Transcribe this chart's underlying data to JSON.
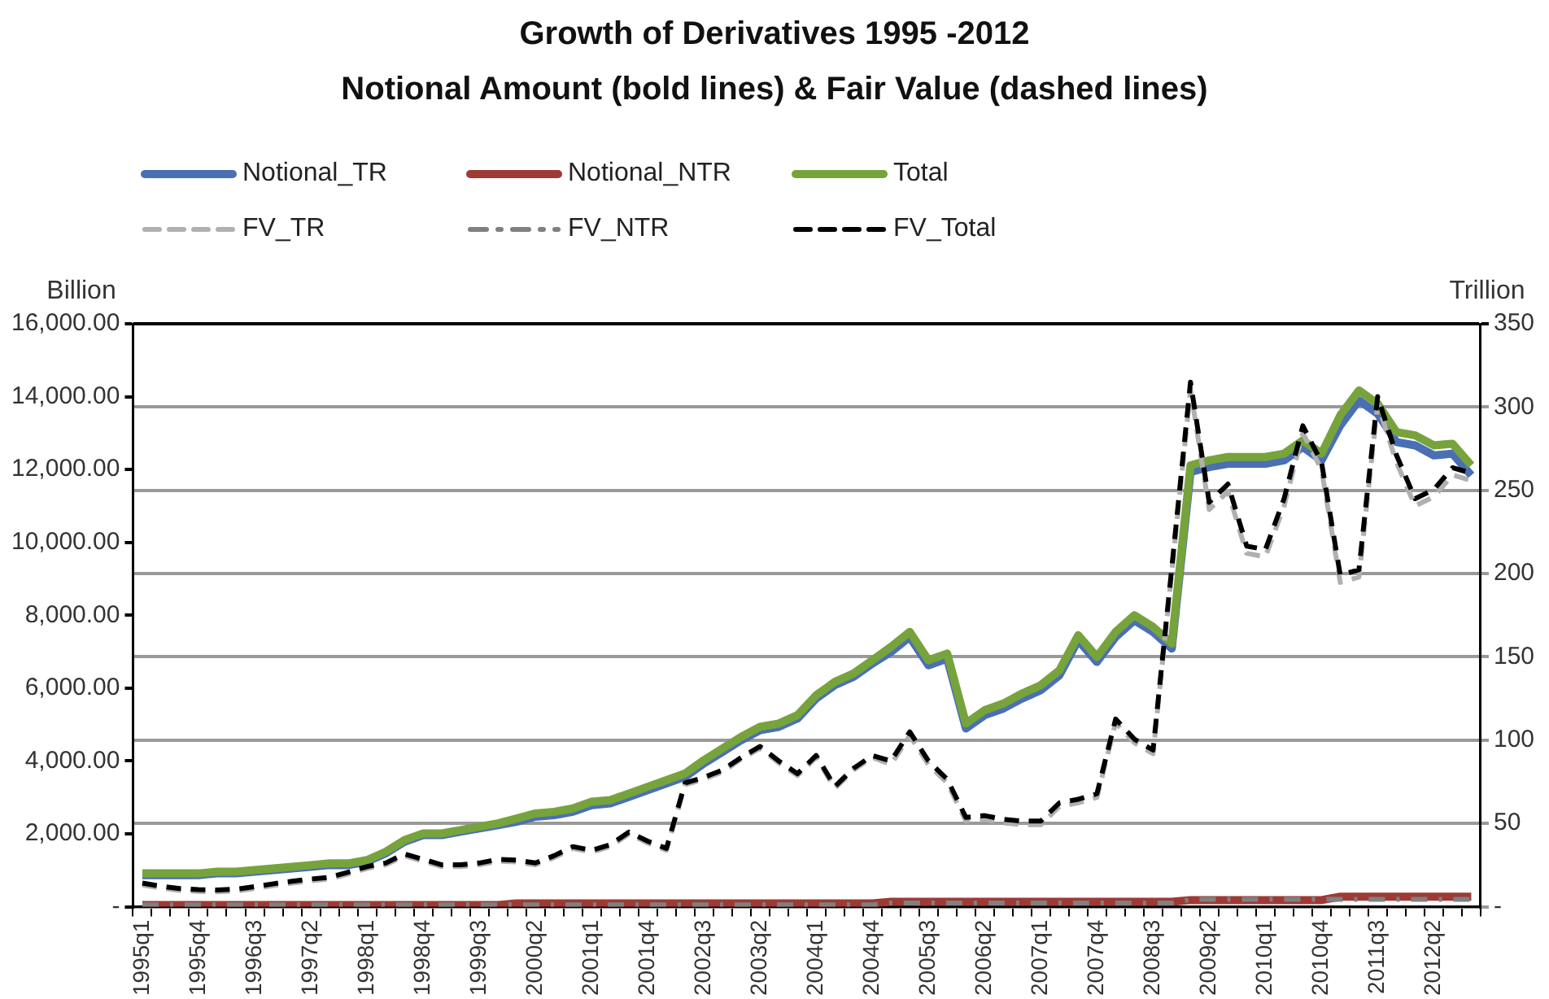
{
  "chart_data": {
    "type": "line",
    "title": "Growth of Derivatives 1995 -2012",
    "subtitle": "Notional Amount (bold lines) & Fair Value (dashed lines)",
    "ylabel": "Billion",
    "y2label": "Trillion",
    "categories": [
      "1995q1",
      null,
      null,
      "1995q4",
      null,
      null,
      "1996q3",
      null,
      null,
      "1997q2",
      null,
      null,
      "1998q1",
      null,
      null,
      "1998q4",
      null,
      null,
      "1999q3",
      null,
      null,
      "2000q2",
      null,
      null,
      "2001q1",
      null,
      null,
      "2001q4",
      null,
      null,
      "2002q3",
      null,
      null,
      "2003q2",
      null,
      null,
      "2004q1",
      null,
      null,
      "2004q4",
      null,
      null,
      "2005q3",
      null,
      null,
      "2006q2",
      null,
      null,
      "2007q1",
      null,
      null,
      "2007q4",
      null,
      null,
      "2008q3",
      null,
      null,
      "2009q2",
      null,
      null,
      "2010q1",
      null,
      null,
      "2010q4",
      null,
      null,
      "2011q3",
      null,
      null,
      "2012q2",
      null,
      null
    ],
    "series": [
      {
        "name": "Notional_TR",
        "color": "#4a6fb5",
        "axis": "y2",
        "line_style": "solid",
        "values": [
          19,
          19,
          19,
          19,
          20,
          20,
          21,
          22,
          23,
          24,
          25,
          25,
          27,
          32,
          39,
          43,
          43,
          45,
          47,
          49,
          51,
          54,
          55,
          57,
          61,
          62,
          66,
          70,
          74,
          78,
          86,
          93,
          100,
          106,
          108,
          113,
          125,
          133,
          138,
          146,
          153,
          162,
          145,
          149,
          107,
          115,
          119,
          125,
          130,
          139,
          160,
          147,
          162,
          172,
          165,
          155,
          261,
          264,
          266,
          266,
          266,
          268,
          276,
          268,
          289,
          304,
          296,
          279,
          277,
          271,
          272,
          259
        ]
      },
      {
        "name": "Notional_NTR",
        "color": "#9e3a36",
        "axis": "y2",
        "line_style": "solid",
        "values": [
          1,
          1,
          1,
          1,
          1,
          1,
          1,
          1,
          1,
          1,
          1,
          1,
          1,
          1,
          1,
          1,
          1,
          1,
          1,
          1,
          2,
          2,
          2,
          2,
          2,
          2,
          2,
          2,
          2,
          2,
          2,
          2,
          2,
          2,
          2,
          2,
          2,
          2,
          2,
          2,
          3,
          3,
          3,
          3,
          3,
          3,
          3,
          3,
          3,
          3,
          3,
          3,
          3,
          3,
          3,
          3,
          4,
          4,
          4,
          4,
          4,
          4,
          4,
          4,
          6,
          6,
          6,
          6,
          6,
          6,
          6,
          6
        ]
      },
      {
        "name": "Total",
        "color": "#77a33c",
        "axis": "y2",
        "line_style": "solid",
        "values": [
          20,
          20,
          20,
          20,
          21,
          21,
          22,
          23,
          24,
          25,
          26,
          26,
          28,
          33,
          40,
          44,
          44,
          46,
          48,
          50,
          53,
          56,
          57,
          59,
          63,
          64,
          68,
          72,
          76,
          80,
          88,
          95,
          102,
          108,
          110,
          115,
          127,
          135,
          140,
          148,
          156,
          165,
          148,
          152,
          110,
          118,
          122,
          128,
          133,
          142,
          163,
          150,
          165,
          175,
          168,
          158,
          265,
          268,
          270,
          270,
          270,
          272,
          280,
          272,
          295,
          310,
          302,
          285,
          283,
          277,
          278,
          265
        ]
      },
      {
        "name": "FV_TR",
        "color": "#b0b0b0",
        "axis": "y",
        "line_style": "dashed",
        "values": [
          600,
          510,
          450,
          420,
          410,
          430,
          500,
          580,
          650,
          710,
          760,
          900,
          1050,
          1150,
          1400,
          1250,
          1100,
          1100,
          1150,
          1250,
          1230,
          1150,
          1350,
          1600,
          1500,
          1650,
          2000,
          1750,
          1550,
          3350,
          3500,
          3700,
          4050,
          4350,
          3950,
          3600,
          4100,
          3250,
          3750,
          4100,
          3900,
          4700,
          3900,
          3400,
          2350,
          2400,
          2300,
          2250,
          2250,
          2750,
          2850,
          3000,
          5050,
          4500,
          4200,
          9200,
          14200,
          10900,
          11400,
          9700,
          9600,
          11000,
          13000,
          12000,
          8900,
          9050,
          13800,
          12200,
          11000,
          11250,
          11850,
          11700
        ]
      },
      {
        "name": "FV_NTR",
        "color": "#808080",
        "axis": "y",
        "line_style": "dashdot",
        "values": [
          50,
          50,
          50,
          50,
          50,
          50,
          50,
          50,
          50,
          50,
          50,
          50,
          50,
          50,
          50,
          50,
          50,
          50,
          50,
          50,
          50,
          50,
          50,
          50,
          50,
          50,
          50,
          50,
          50,
          50,
          50,
          50,
          50,
          50,
          50,
          50,
          50,
          50,
          50,
          50,
          100,
          100,
          100,
          100,
          100,
          100,
          100,
          100,
          100,
          100,
          100,
          100,
          100,
          100,
          100,
          100,
          200,
          200,
          200,
          200,
          200,
          200,
          200,
          200,
          200,
          200,
          200,
          200,
          200,
          200,
          200,
          200
        ]
      },
      {
        "name": "FV_Total",
        "color": "#000000",
        "axis": "y",
        "line_style": "dashed",
        "values": [
          650,
          560,
          500,
          470,
          460,
          480,
          550,
          630,
          700,
          760,
          810,
          950,
          1100,
          1200,
          1450,
          1300,
          1150,
          1150,
          1200,
          1300,
          1280,
          1200,
          1400,
          1650,
          1550,
          1700,
          2050,
          1800,
          1600,
          3400,
          3550,
          3750,
          4100,
          4400,
          4000,
          3650,
          4150,
          3300,
          3800,
          4150,
          4000,
          4800,
          4000,
          3500,
          2450,
          2500,
          2400,
          2350,
          2350,
          2850,
          2950,
          3100,
          5150,
          4600,
          4300,
          9300,
          14400,
          11100,
          11600,
          9900,
          9800,
          11200,
          13200,
          12200,
          9100,
          9250,
          14000,
          12400,
          11200,
          11450,
          12050,
          11900
        ]
      }
    ],
    "ylim": [
      0,
      16000
    ],
    "yticks": [
      {
        "value": 0,
        "label": "-"
      },
      {
        "value": 2000,
        "label": "2,000.00"
      },
      {
        "value": 4000,
        "label": "4,000.00"
      },
      {
        "value": 6000,
        "label": "6,000.00"
      },
      {
        "value": 8000,
        "label": "8,000.00"
      },
      {
        "value": 10000,
        "label": "10,000.00"
      },
      {
        "value": 12000,
        "label": "12,000.00"
      },
      {
        "value": 14000,
        "label": "14,000.00"
      },
      {
        "value": 16000,
        "label": "16,000.00"
      }
    ],
    "y2lim": [
      0,
      350
    ],
    "y2ticks": [
      {
        "value": 0,
        "label": "-"
      },
      50,
      100,
      150,
      200,
      250,
      300,
      350
    ],
    "grid": "y2",
    "legend": "top",
    "marker": "none"
  }
}
